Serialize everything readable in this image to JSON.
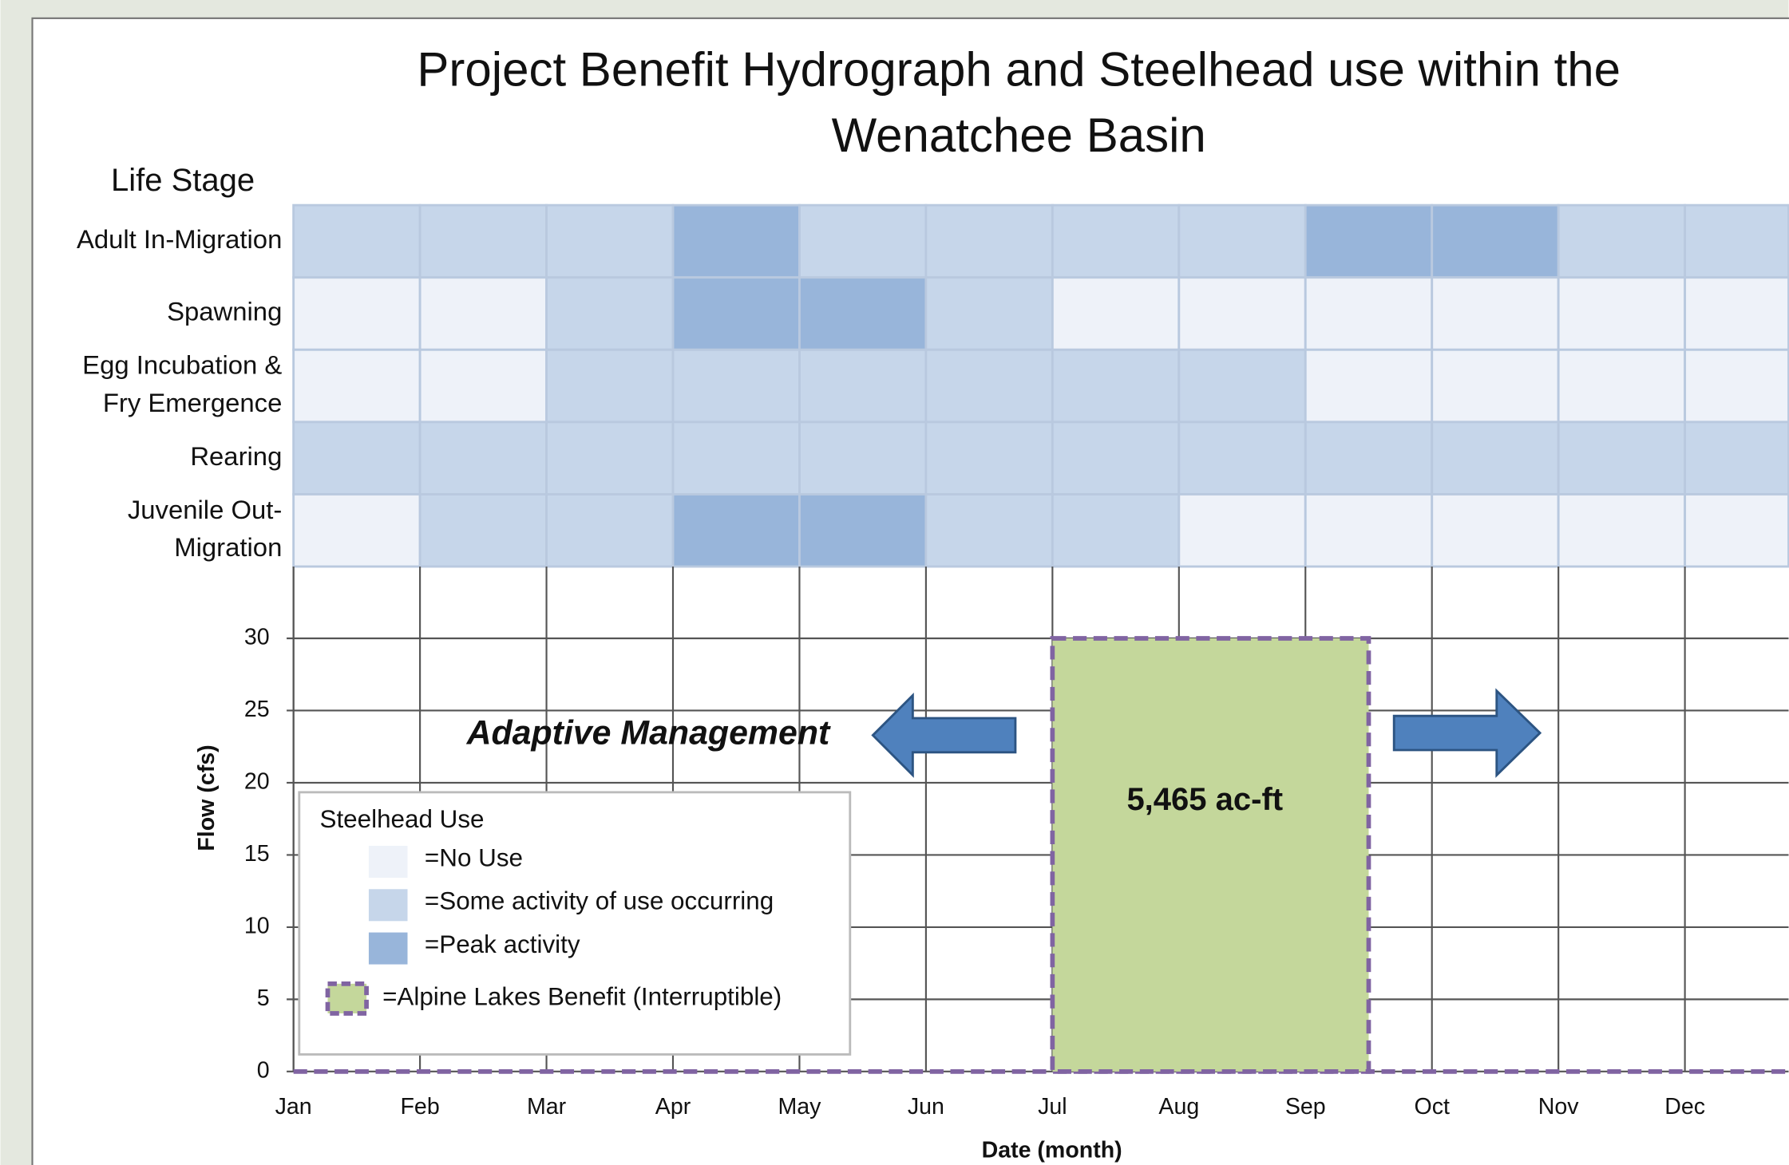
{
  "chart_data": {
    "type": "hydrograph",
    "title": [
      "Project Benefit Hydrograph and Steelhead use within the",
      "Wenatchee Basin"
    ],
    "stage_header": "Life Stage",
    "levels": [
      {
        "name": "=No Use",
        "color": "#eef2f9"
      },
      {
        "name": "=Some activity of use occurring",
        "color": "#c6d6ea"
      },
      {
        "name": "=Peak activity",
        "color": "#98b5da"
      }
    ],
    "legend_title": "Steelhead Use",
    "stages": [
      {
        "label": [
          "Adult In-Migration"
        ],
        "values": [
          1,
          1,
          1,
          2,
          1,
          1,
          1,
          1,
          2,
          2,
          1,
          1
        ]
      },
      {
        "label": [
          "Spawning"
        ],
        "values": [
          0,
          0,
          1,
          2,
          2,
          1,
          0,
          0,
          0,
          0,
          0,
          0
        ]
      },
      {
        "label": [
          "Egg Incubation &",
          "Fry Emergence"
        ],
        "values": [
          0,
          0,
          1,
          1,
          1,
          1,
          1,
          1,
          0,
          0,
          0,
          0
        ]
      },
      {
        "label": [
          "Rearing"
        ],
        "values": [
          1,
          1,
          1,
          1,
          1,
          1,
          1,
          1,
          1,
          1,
          1,
          1
        ]
      },
      {
        "label": [
          "Juvenile Out-",
          "Migration"
        ],
        "values": [
          0,
          1,
          1,
          2,
          2,
          1,
          1,
          0,
          0,
          0,
          0,
          0
        ]
      }
    ],
    "xlabel": "Date (month)",
    "ylabel": "Flow (cfs)",
    "xlim": [
      0,
      12
    ],
    "ylim": [
      0,
      30
    ],
    "xticks": [
      {
        "value": 0,
        "label": "Jan"
      },
      {
        "value": 1,
        "label": "Feb"
      },
      {
        "value": 2,
        "label": "Mar"
      },
      {
        "value": 3,
        "label": "Apr"
      },
      {
        "value": 4,
        "label": "May"
      },
      {
        "value": 5,
        "label": "Jun"
      },
      {
        "value": 6,
        "label": "Jul"
      },
      {
        "value": 7,
        "label": "Aug"
      },
      {
        "value": 8,
        "label": "Sep"
      },
      {
        "value": 9,
        "label": "Oct"
      },
      {
        "value": 10,
        "label": "Nov"
      },
      {
        "value": 11,
        "label": "Dec"
      }
    ],
    "yticks": [
      0,
      5,
      10,
      15,
      20,
      25,
      30
    ],
    "grid": true,
    "benefit": {
      "name": "=Alpine Lakes Benefit (Interruptible)",
      "x": [
        6,
        8.5
      ],
      "value": 30,
      "value_label": "5,465 ac-ft",
      "color": "#c4d79b",
      "edge_color": "#8064a2"
    },
    "annotation": "Adaptive Management"
  }
}
